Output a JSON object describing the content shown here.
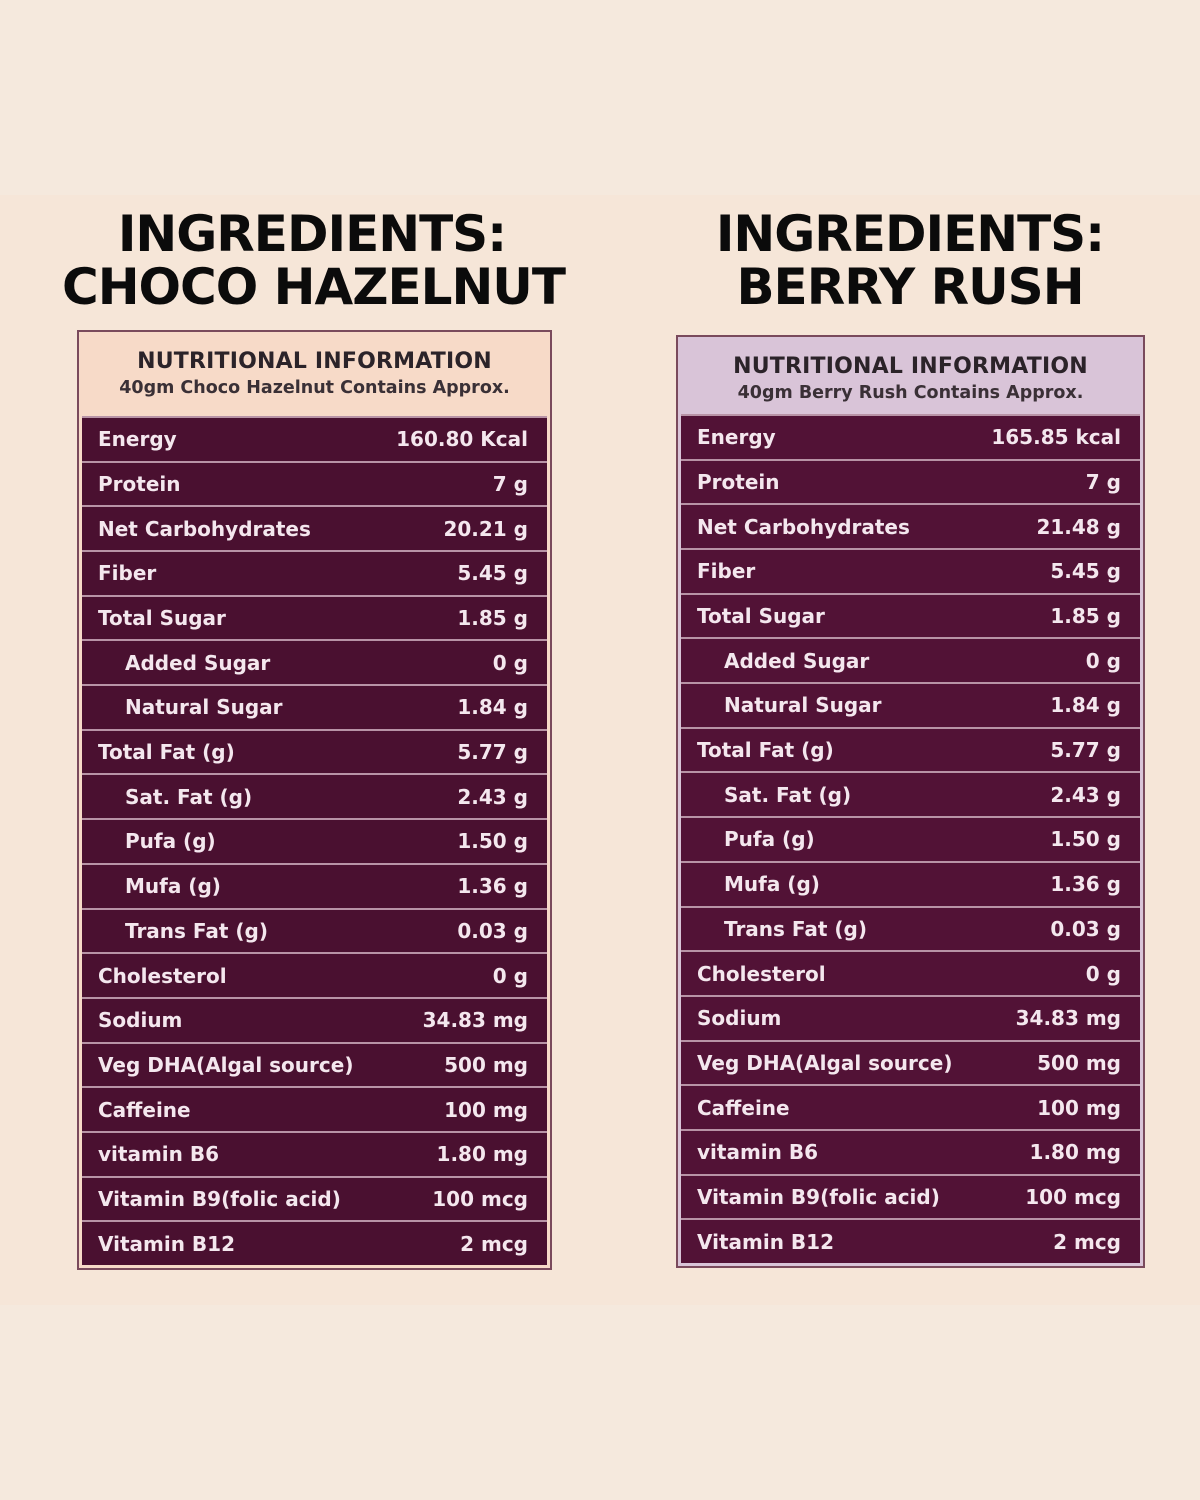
{
  "left": {
    "title_line1": "INGREDIENTS:",
    "title_line2": "CHOCO HAZELNUT",
    "panel_title": "NUTRITIONAL INFORMATION",
    "panel_subtitle": "40gm Choco Hazelnut Contains Approx.",
    "rows": [
      {
        "label": "Energy",
        "value": "160.80 Kcal"
      },
      {
        "label": "Protein",
        "value": "7 g"
      },
      {
        "label": "Net Carbohydrates",
        "value": "20.21 g"
      },
      {
        "label": "Fiber",
        "value": "5.45 g"
      },
      {
        "label": "Total Sugar",
        "value": "1.85 g"
      },
      {
        "label": "Added Sugar",
        "value": "0 g"
      },
      {
        "label": "Natural Sugar",
        "value": "1.84 g"
      },
      {
        "label": "Total Fat (g)",
        "value": "5.77 g"
      },
      {
        "label": "Sat. Fat (g)",
        "value": "2.43 g"
      },
      {
        "label": "Pufa (g)",
        "value": "1.50 g"
      },
      {
        "label": "Mufa (g)",
        "value": "1.36 g"
      },
      {
        "label": "Trans Fat (g)",
        "value": "0.03 g"
      },
      {
        "label": "Cholesterol",
        "value": "0 g"
      },
      {
        "label": "Sodium",
        "value": "34.83 mg"
      },
      {
        "label": "Veg DHA(Algal source)",
        "value": "500 mg"
      },
      {
        "label": "Caffeine",
        "value": "100 mg"
      },
      {
        "label": "vitamin B6",
        "value": "1.80 mg"
      },
      {
        "label": "Vitamin B9(folic acid)",
        "value": "100 mcg"
      },
      {
        "label": "Vitamin B12",
        "value": "2 mcg"
      }
    ]
  },
  "right": {
    "title_line1": "INGREDIENTS:",
    "title_line2": "BERRY RUSH",
    "panel_title": "NUTRITIONAL INFORMATION",
    "panel_subtitle": "40gm Berry Rush Contains Approx.",
    "rows": [
      {
        "label": "Energy",
        "value": "165.85 kcal"
      },
      {
        "label": "Protein",
        "value": "7 g"
      },
      {
        "label": "Net Carbohydrates",
        "value": "21.48 g"
      },
      {
        "label": "Fiber",
        "value": "5.45 g"
      },
      {
        "label": "Total Sugar",
        "value": "1.85 g"
      },
      {
        "label": "Added Sugar",
        "value": "0 g"
      },
      {
        "label": "Natural Sugar",
        "value": "1.84 g"
      },
      {
        "label": "Total Fat (g)",
        "value": "5.77 g"
      },
      {
        "label": "Sat. Fat (g)",
        "value": "2.43 g"
      },
      {
        "label": "Pufa (g)",
        "value": "1.50 g"
      },
      {
        "label": "Mufa (g)",
        "value": "1.36 g"
      },
      {
        "label": "Trans Fat (g)",
        "value": "0.03 g"
      },
      {
        "label": "Cholesterol",
        "value": "0 g"
      },
      {
        "label": "Sodium",
        "value": "34.83 mg"
      },
      {
        "label": "Veg DHA(Algal source)",
        "value": "500 mg"
      },
      {
        "label": "Caffeine",
        "value": "100 mg"
      },
      {
        "label": "vitamin B6",
        "value": "1.80 mg"
      },
      {
        "label": "Vitamin B9(folic acid)",
        "value": "100 mcg"
      },
      {
        "label": "Vitamin B12",
        "value": "2 mcg"
      }
    ]
  },
  "colors": {
    "background": "#f5e9dd",
    "row_fill": "#4a1030",
    "row_text": "#f4e7ee",
    "left_header": "#f7dac8",
    "right_header": "#d9c4d8",
    "title_text": "#0b0b0b"
  }
}
